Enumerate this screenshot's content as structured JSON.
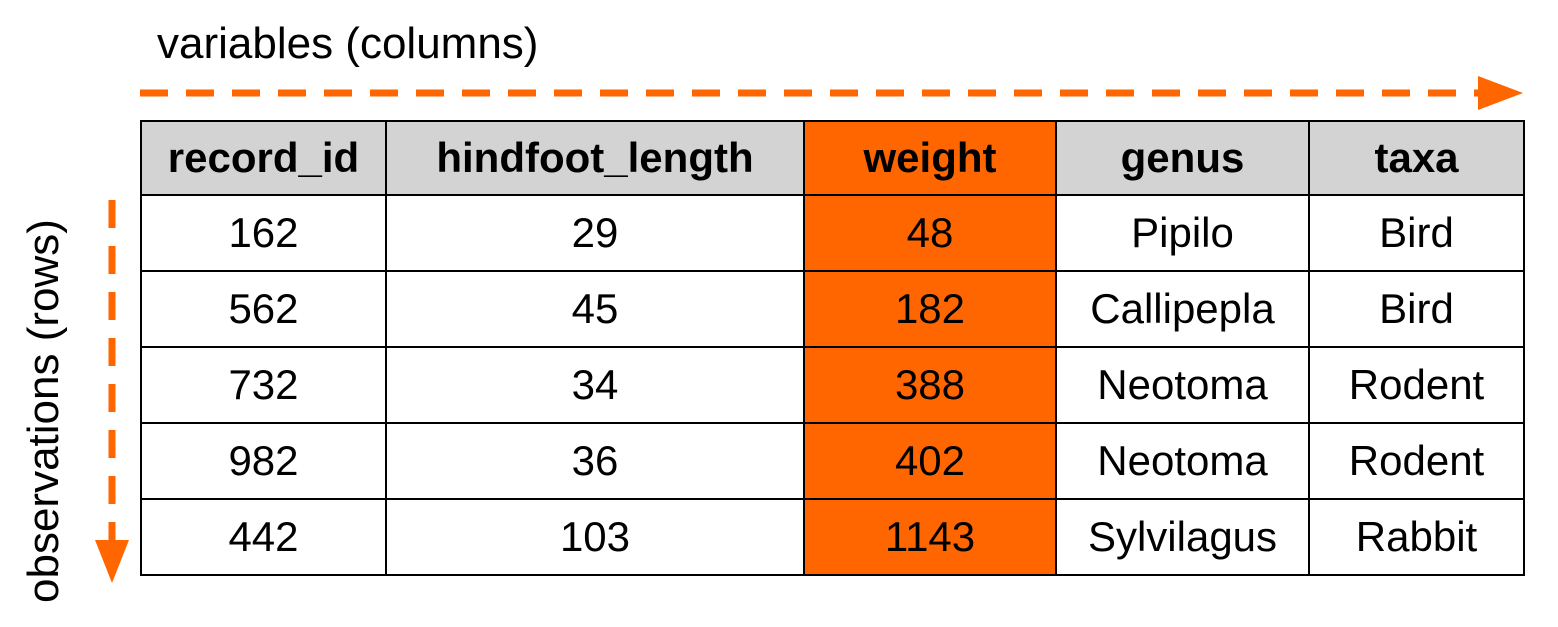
{
  "labels": {
    "variables": "variables (columns)",
    "observations": "observations (rows)"
  },
  "colors": {
    "accent": "#ff6600",
    "header_bg": "#d3d3d3",
    "border": "#000000"
  },
  "table": {
    "highlighted_column": "weight",
    "headers": [
      "record_id",
      "hindfoot_length",
      "weight",
      "genus",
      "taxa"
    ],
    "rows": [
      [
        "162",
        "29",
        "48",
        "Pipilo",
        "Bird"
      ],
      [
        "562",
        "45",
        "182",
        "Callipepla",
        "Bird"
      ],
      [
        "732",
        "34",
        "388",
        "Neotoma",
        "Rodent"
      ],
      [
        "982",
        "36",
        "402",
        "Neotoma",
        "Rodent"
      ],
      [
        "442",
        "103",
        "1143",
        "Sylvilagus",
        "Rabbit"
      ]
    ]
  }
}
